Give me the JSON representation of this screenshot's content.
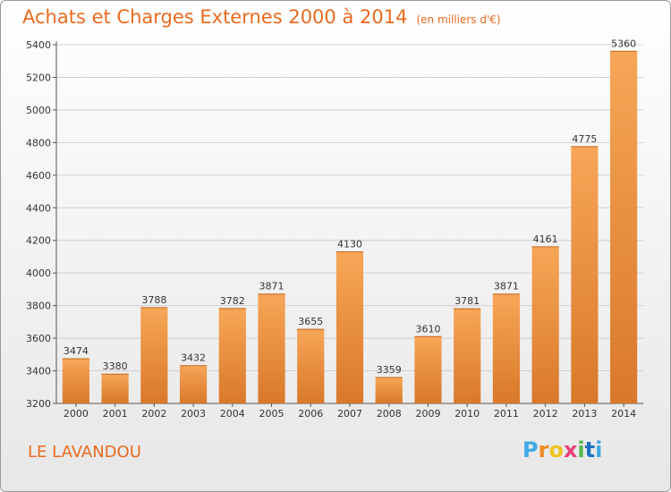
{
  "header": {
    "title": "Achats et Charges Externes 2000 à 2014",
    "unit": "(en milliers d'€)"
  },
  "footer": {
    "commune": "LE LAVANDOU",
    "brand": "Proxiti"
  },
  "colors": {
    "title": "#ea6a1f",
    "bar_top": "#f7a657",
    "bar_bottom": "#d9782a",
    "grid": "#cfcfcf"
  },
  "chart_data": {
    "type": "bar",
    "categories": [
      "2000",
      "2001",
      "2002",
      "2003",
      "2004",
      "2005",
      "2006",
      "2007",
      "2008",
      "2009",
      "2010",
      "2011",
      "2012",
      "2013",
      "2014"
    ],
    "values": [
      3474,
      3380,
      3788,
      3432,
      3782,
      3871,
      3655,
      4130,
      3359,
      3610,
      3781,
      3871,
      4161,
      4775,
      5360
    ],
    "title": "Achats et Charges Externes 2000 à 2014",
    "ylim": [
      3200,
      5400
    ],
    "yticks": [
      3200,
      3400,
      3600,
      3800,
      4000,
      4200,
      4400,
      4600,
      4800,
      5000,
      5200,
      5400
    ],
    "grid": true
  }
}
